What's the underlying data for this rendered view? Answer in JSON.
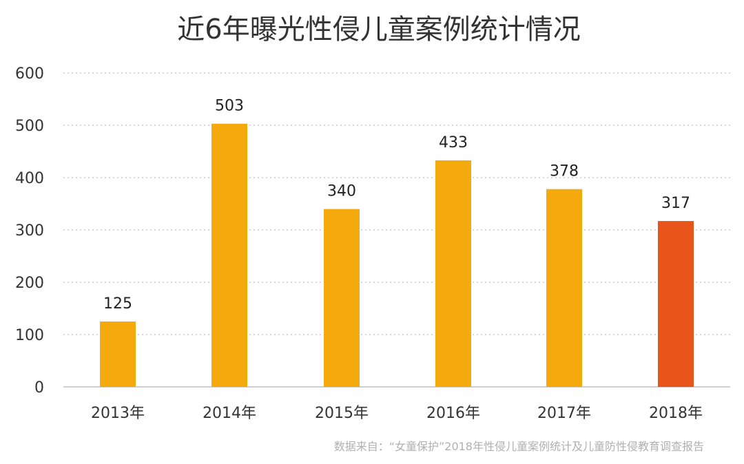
{
  "chart_data": {
    "type": "bar",
    "title": "近6年曝光性侵儿童案例统计情况",
    "categories": [
      "2013年",
      "2014年",
      "2015年",
      "2016年",
      "2017年",
      "2018年"
    ],
    "values": [
      125,
      503,
      340,
      433,
      378,
      317
    ],
    "ylim": [
      0,
      600
    ],
    "yticks": [
      0,
      100,
      200,
      300,
      400,
      500,
      600
    ],
    "grid": true,
    "bar_colors": [
      "#F4A90C",
      "#F4A90C",
      "#F4A90C",
      "#F4A90C",
      "#F4A90C",
      "#E8541A"
    ],
    "source": "数据来自：“女童保护”2018年性侵儿童案例统计及儿童防性侵教育调查报告"
  }
}
